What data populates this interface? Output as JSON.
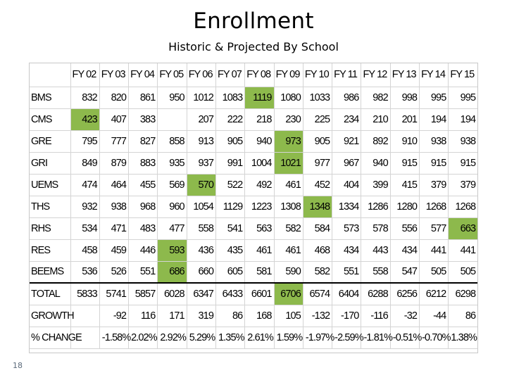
{
  "title": "Enrollment",
  "subtitle": "Historic & Projected By School",
  "page_number": "18",
  "highlight_color": "#8db94c",
  "table": {
    "headers": [
      "",
      "FY 02",
      "FY 03",
      "FY 04",
      "FY 05",
      "FY 06",
      "FY 07",
      "FY 08",
      "FY 09",
      "FY 10",
      "FY 11",
      "FY 12",
      "FY 13",
      "FY 14",
      "FY 15"
    ],
    "rows": [
      {
        "label": "BMS",
        "values": [
          "832",
          "820",
          "861",
          "950",
          "1012",
          "1083",
          "1119",
          "1080",
          "1033",
          "986",
          "982",
          "998",
          "995",
          "995"
        ],
        "highlight": [
          6
        ]
      },
      {
        "label": "CMS",
        "values": [
          "423",
          "407",
          "383",
          "",
          "207",
          "222",
          "218",
          "230",
          "225",
          "234",
          "210",
          "201",
          "194",
          "194"
        ],
        "highlight": [
          0
        ]
      },
      {
        "label": "GRE",
        "values": [
          "795",
          "777",
          "827",
          "858",
          "913",
          "905",
          "940",
          "973",
          "905",
          "921",
          "892",
          "910",
          "938",
          "938"
        ],
        "highlight": [
          7
        ]
      },
      {
        "label": "GRI",
        "values": [
          "849",
          "879",
          "883",
          "935",
          "937",
          "991",
          "1004",
          "1021",
          "977",
          "967",
          "940",
          "915",
          "915",
          "915"
        ],
        "highlight": [
          7
        ]
      },
      {
        "label": "UEMS",
        "values": [
          "474",
          "464",
          "455",
          "569",
          "570",
          "522",
          "492",
          "461",
          "452",
          "404",
          "399",
          "415",
          "379",
          "379"
        ],
        "highlight": [
          4
        ]
      },
      {
        "label": "THS",
        "values": [
          "932",
          "938",
          "968",
          "960",
          "1054",
          "1129",
          "1223",
          "1308",
          "1348",
          "1334",
          "1286",
          "1280",
          "1268",
          "1268"
        ],
        "highlight": [
          8
        ]
      },
      {
        "label": "RHS",
        "values": [
          "534",
          "471",
          "483",
          "477",
          "558",
          "541",
          "563",
          "582",
          "584",
          "573",
          "578",
          "556",
          "577",
          "663"
        ],
        "highlight": [
          13
        ]
      },
      {
        "label": "RES",
        "values": [
          "458",
          "459",
          "446",
          "593",
          "436",
          "435",
          "461",
          "461",
          "468",
          "434",
          "443",
          "434",
          "441",
          "441"
        ],
        "highlight": [
          3
        ]
      },
      {
        "label": "BEEMS",
        "values": [
          "536",
          "526",
          "551",
          "686",
          "660",
          "605",
          "581",
          "590",
          "582",
          "551",
          "558",
          "547",
          "505",
          "505"
        ],
        "highlight": [
          3
        ]
      },
      {
        "label": "TOTAL",
        "values": [
          "5833",
          "5741",
          "5857",
          "6028",
          "6347",
          "6433",
          "6601",
          "6706",
          "6574",
          "6404",
          "6288",
          "6256",
          "6212",
          "6298"
        ],
        "highlight": [
          7
        ],
        "total": true
      },
      {
        "label": "GROWTH",
        "values": [
          "",
          "-92",
          "116",
          "171",
          "319",
          "86",
          "168",
          "105",
          "-132",
          "-170",
          "-116",
          "-32",
          "-44",
          "86"
        ],
        "highlight": []
      },
      {
        "label": "% CHANGE",
        "values": [
          "",
          "-1.58%",
          "2.02%",
          "2.92%",
          "5.29%",
          "1.35%",
          "2.61%",
          "1.59%",
          "-1.97%",
          "-2.59%",
          "-1.81%",
          "-0.51%",
          "-0.70%",
          "1.38%"
        ],
        "highlight": []
      }
    ]
  }
}
